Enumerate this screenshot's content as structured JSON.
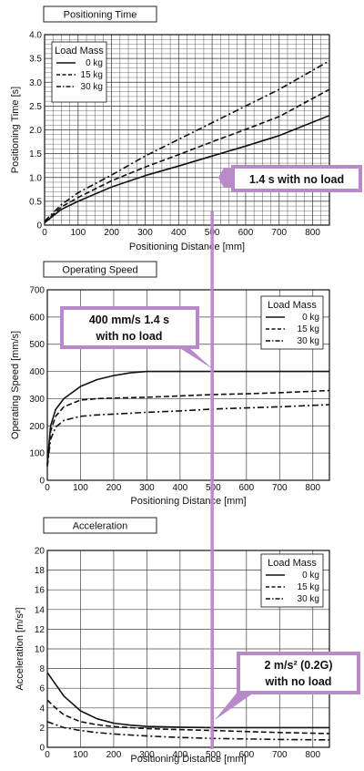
{
  "colors": {
    "highlight": "#b98ac9",
    "ink": "#111111",
    "grid": "#222222"
  },
  "chart_data": [
    {
      "type": "line",
      "title": "Positioning Time",
      "xlabel": "Positioning Distance [mm]",
      "ylabel": "Positioning Time [s]",
      "xlim": [
        0,
        850
      ],
      "ylim": [
        0,
        4.0
      ],
      "x_ticks": [
        "0",
        "100",
        "200",
        "300",
        "400",
        "500",
        "600",
        "700",
        "800"
      ],
      "y_ticks": [
        "0",
        "0.5",
        "1.0",
        "1.5",
        "2.0",
        "2.5",
        "3.0",
        "3.5",
        "4.0"
      ],
      "grid": "fine",
      "legend_title": "Load Mass",
      "legend_position": "top-left",
      "series": [
        {
          "name": "0 kg",
          "style": "solid",
          "x": [
            0,
            50,
            100,
            200,
            300,
            400,
            500,
            600,
            700,
            850
          ],
          "y": [
            0.05,
            0.33,
            0.5,
            0.8,
            1.04,
            1.24,
            1.45,
            1.66,
            1.88,
            2.3
          ]
        },
        {
          "name": "15 kg",
          "style": "dashed",
          "x": [
            0,
            50,
            100,
            200,
            300,
            400,
            500,
            600,
            700,
            850
          ],
          "y": [
            0.06,
            0.38,
            0.58,
            0.93,
            1.22,
            1.48,
            1.75,
            2.01,
            2.28,
            2.85
          ]
        },
        {
          "name": "30 kg",
          "style": "dashdot",
          "x": [
            0,
            50,
            100,
            200,
            300,
            400,
            500,
            600,
            700,
            850
          ],
          "y": [
            0.08,
            0.43,
            0.68,
            1.05,
            1.45,
            1.8,
            2.15,
            2.5,
            2.85,
            3.45
          ]
        }
      ],
      "annotation": {
        "text": "1.4 s with no load",
        "x": 500,
        "y": 1.4
      }
    },
    {
      "type": "line",
      "title": "Operating Speed",
      "xlabel": "Positioning Distance [mm]",
      "ylabel": "Operating Speed [mm/s]",
      "xlim": [
        0,
        850
      ],
      "ylim": [
        0,
        700
      ],
      "x_ticks": [
        "0",
        "100",
        "200",
        "300",
        "400",
        "500",
        "600",
        "700",
        "800"
      ],
      "y_ticks": [
        "0",
        "100",
        "200",
        "300",
        "400",
        "500",
        "600",
        "700"
      ],
      "grid": "coarse",
      "legend_title": "Load Mass",
      "legend_position": "top-right",
      "series": [
        {
          "name": "0 kg",
          "style": "solid",
          "x": [
            0,
            10,
            25,
            50,
            100,
            150,
            200,
            250,
            300,
            350,
            850
          ],
          "y": [
            60,
            200,
            260,
            300,
            345,
            370,
            385,
            395,
            400,
            400,
            400
          ]
        },
        {
          "name": "15 kg",
          "style": "dashed",
          "x": [
            0,
            10,
            25,
            50,
            100,
            150,
            200,
            300,
            400,
            500,
            600,
            700,
            850
          ],
          "y": [
            55,
            180,
            235,
            270,
            295,
            300,
            302,
            305,
            310,
            315,
            318,
            322,
            330
          ]
        },
        {
          "name": "30 kg",
          "style": "dashdot",
          "x": [
            0,
            10,
            25,
            50,
            100,
            150,
            200,
            300,
            400,
            500,
            600,
            700,
            850
          ],
          "y": [
            50,
            150,
            195,
            220,
            235,
            240,
            243,
            250,
            255,
            262,
            266,
            270,
            278
          ]
        }
      ],
      "annotation": {
        "text": [
          "400 mm/s 1.4 s",
          "with no load"
        ],
        "x": 500,
        "y": 400
      }
    },
    {
      "type": "line",
      "title": "Acceleration",
      "xlabel": "Positioning Distance [mm]",
      "ylabel": "Acceleration [m/s²]",
      "xlim": [
        0,
        850
      ],
      "ylim": [
        0,
        20
      ],
      "x_ticks": [
        "0",
        "100",
        "200",
        "300",
        "400",
        "500",
        "600",
        "700",
        "800"
      ],
      "y_ticks": [
        "0",
        "2",
        "4",
        "6",
        "8",
        "10",
        "12",
        "14",
        "16",
        "18",
        "20"
      ],
      "grid": "coarse",
      "legend_title": "Load Mass",
      "legend_position": "top-right",
      "series": [
        {
          "name": "0 kg",
          "style": "solid",
          "x": [
            0,
            25,
            50,
            100,
            150,
            200,
            250,
            300,
            400,
            500,
            600,
            700,
            850
          ],
          "y": [
            7.6,
            6.4,
            5.2,
            3.7,
            2.9,
            2.45,
            2.25,
            2.12,
            2.05,
            2.0,
            2.0,
            2.0,
            2.0
          ]
        },
        {
          "name": "15 kg",
          "style": "dashed",
          "x": [
            0,
            25,
            50,
            100,
            150,
            200,
            300,
            400,
            500,
            600,
            700,
            850
          ],
          "y": [
            4.8,
            4.0,
            3.3,
            2.6,
            2.3,
            2.1,
            1.9,
            1.8,
            1.7,
            1.6,
            1.5,
            1.4
          ]
        },
        {
          "name": "30 kg",
          "style": "dashdot",
          "x": [
            0,
            25,
            50,
            100,
            150,
            200,
            300,
            400,
            500,
            600,
            700,
            850
          ],
          "y": [
            2.6,
            2.3,
            2.0,
            1.7,
            1.5,
            1.35,
            1.15,
            1.0,
            0.9,
            0.85,
            0.8,
            0.75
          ]
        }
      ],
      "annotation": {
        "text": [
          "2 m/s² (0.2G)",
          "with no load"
        ],
        "x": 500,
        "y": 2.0
      }
    }
  ]
}
